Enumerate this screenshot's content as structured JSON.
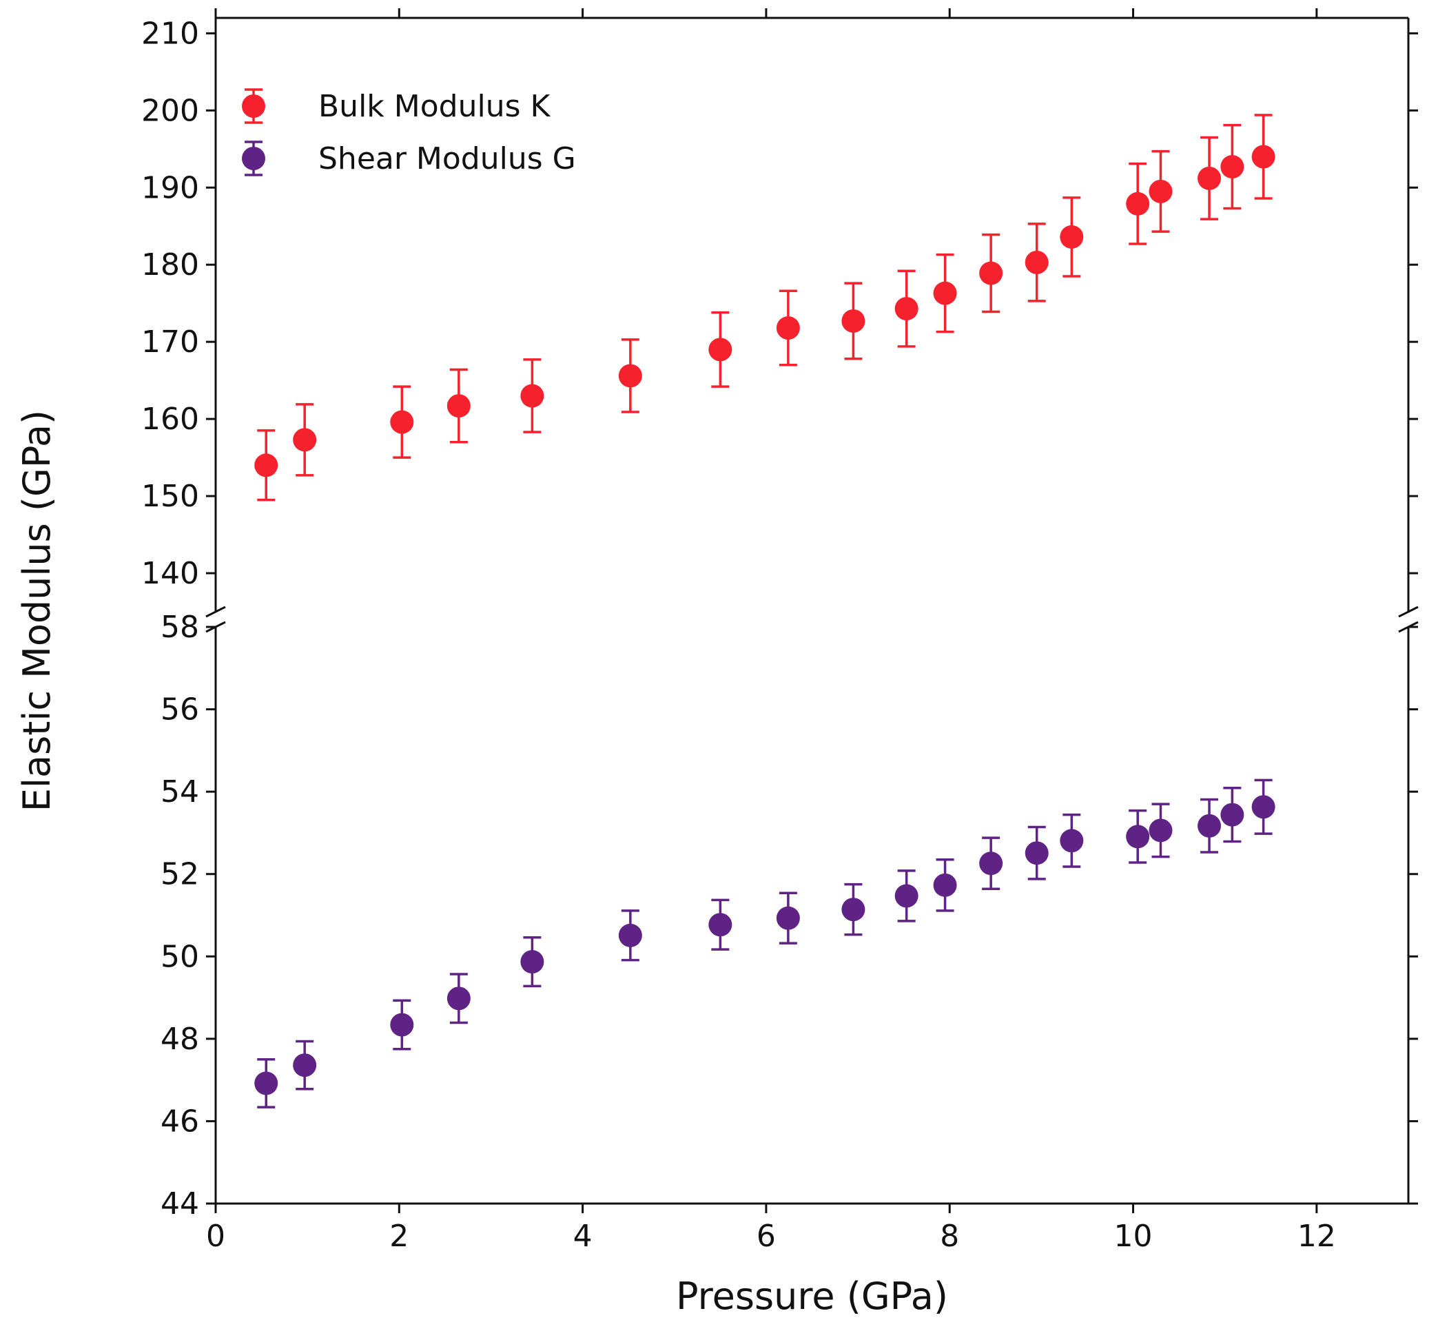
{
  "chart_data": {
    "type": "scatter",
    "title": "",
    "xlabel": "Pressure (GPa)",
    "ylabel": "Elastic Modulus (GPa)",
    "xlim": [
      0,
      13
    ],
    "x_ticks": [
      0,
      2,
      4,
      6,
      8,
      10,
      12
    ],
    "broken_y_axis": true,
    "upper_panel": {
      "ylim": [
        135,
        212
      ],
      "y_ticks": [
        140,
        150,
        160,
        170,
        180,
        190,
        200,
        210
      ]
    },
    "lower_panel": {
      "ylim": [
        44,
        58
      ],
      "y_ticks": [
        44,
        46,
        48,
        50,
        52,
        54,
        56,
        58
      ]
    },
    "legend_placement": "top-left",
    "grid": false,
    "series": [
      {
        "name": "Bulk Modulus K",
        "panel": "upper",
        "color": "#f5222d",
        "x": [
          0.55,
          0.97,
          2.03,
          2.65,
          3.45,
          4.52,
          5.5,
          6.24,
          6.95,
          7.53,
          7.95,
          8.45,
          8.95,
          9.33,
          10.05,
          10.3,
          10.83,
          11.08,
          11.42
        ],
        "values": [
          154.0,
          157.3,
          159.6,
          161.7,
          163.0,
          165.6,
          169.0,
          171.8,
          172.7,
          174.3,
          176.3,
          178.9,
          180.3,
          183.6,
          187.9,
          189.5,
          191.2,
          192.7,
          194.0
        ],
        "errors": [
          4.5,
          4.6,
          4.6,
          4.7,
          4.7,
          4.7,
          4.8,
          4.8,
          4.9,
          4.9,
          5.0,
          5.0,
          5.0,
          5.1,
          5.2,
          5.2,
          5.3,
          5.4,
          5.4
        ]
      },
      {
        "name": "Shear Modulus G",
        "panel": "lower",
        "color": "#5e2384",
        "x": [
          0.55,
          0.97,
          2.03,
          2.65,
          3.45,
          4.52,
          5.5,
          6.24,
          6.95,
          7.53,
          7.95,
          8.45,
          8.95,
          9.33,
          10.05,
          10.3,
          10.83,
          11.08,
          11.42
        ],
        "values": [
          46.92,
          47.36,
          48.34,
          48.98,
          49.87,
          50.51,
          50.77,
          50.93,
          51.14,
          51.47,
          51.73,
          52.26,
          52.51,
          52.81,
          52.91,
          53.06,
          53.17,
          53.44,
          53.63
        ],
        "errors": [
          0.58,
          0.58,
          0.59,
          0.59,
          0.59,
          0.6,
          0.6,
          0.61,
          0.61,
          0.61,
          0.62,
          0.62,
          0.63,
          0.63,
          0.63,
          0.64,
          0.64,
          0.65,
          0.65
        ]
      }
    ]
  }
}
